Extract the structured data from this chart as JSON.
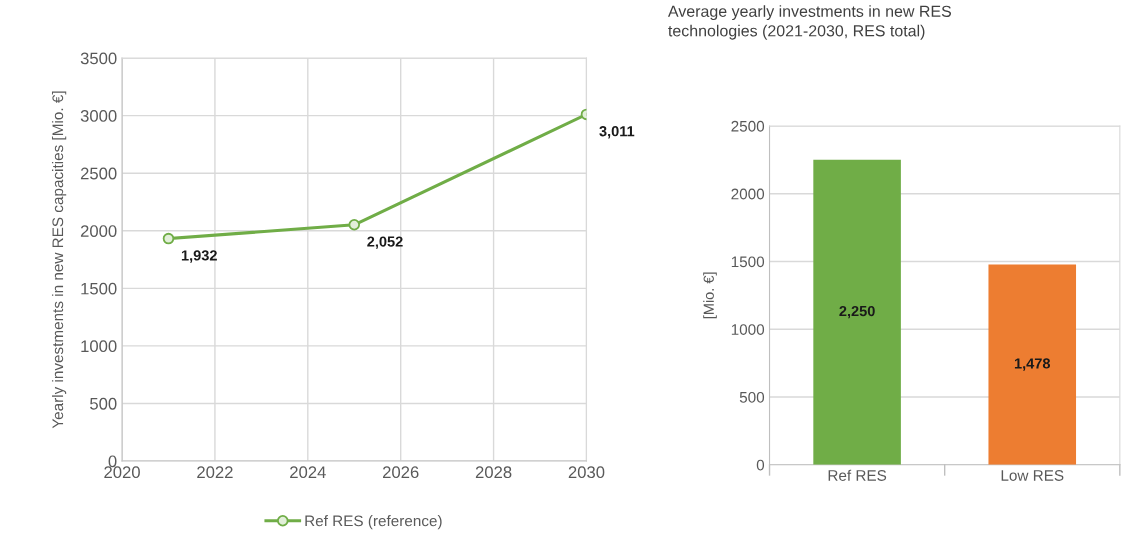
{
  "chart_data": [
    {
      "type": "line",
      "x": [
        2021,
        2025,
        2030
      ],
      "series": [
        {
          "name": "Ref RES (reference)",
          "color": "#70ad47",
          "values": [
            1932,
            2052,
            3011
          ],
          "value_labels": [
            "1,932",
            "2,052",
            "3,011"
          ]
        }
      ],
      "ylabel": "Yearly investments in new RES capacities [Mio. €]",
      "xlim": [
        2020,
        2030
      ],
      "xticks": [
        2020,
        2022,
        2024,
        2026,
        2028,
        2030
      ],
      "ylim": [
        0,
        3500
      ],
      "yticks": [
        0,
        500,
        1000,
        1500,
        2000,
        2500,
        3000,
        3500
      ],
      "grid": true,
      "legend": "bottom",
      "marker": "circle",
      "line_style": "solid"
    },
    {
      "type": "bar",
      "title": "Average yearly investments in new RES\ntechnologies (2021-2030, RES total)",
      "categories": [
        "Ref RES",
        "Low RES"
      ],
      "values": [
        2250,
        1478
      ],
      "colors": [
        "#70ad47",
        "#ed7d31"
      ],
      "value_labels": [
        "2,250",
        "1,478"
      ],
      "ylabel": "[Mio. €]",
      "ylim": [
        0,
        2500
      ],
      "yticks": [
        0,
        500,
        1000,
        1500,
        2000,
        2500
      ],
      "grid": "y"
    }
  ]
}
